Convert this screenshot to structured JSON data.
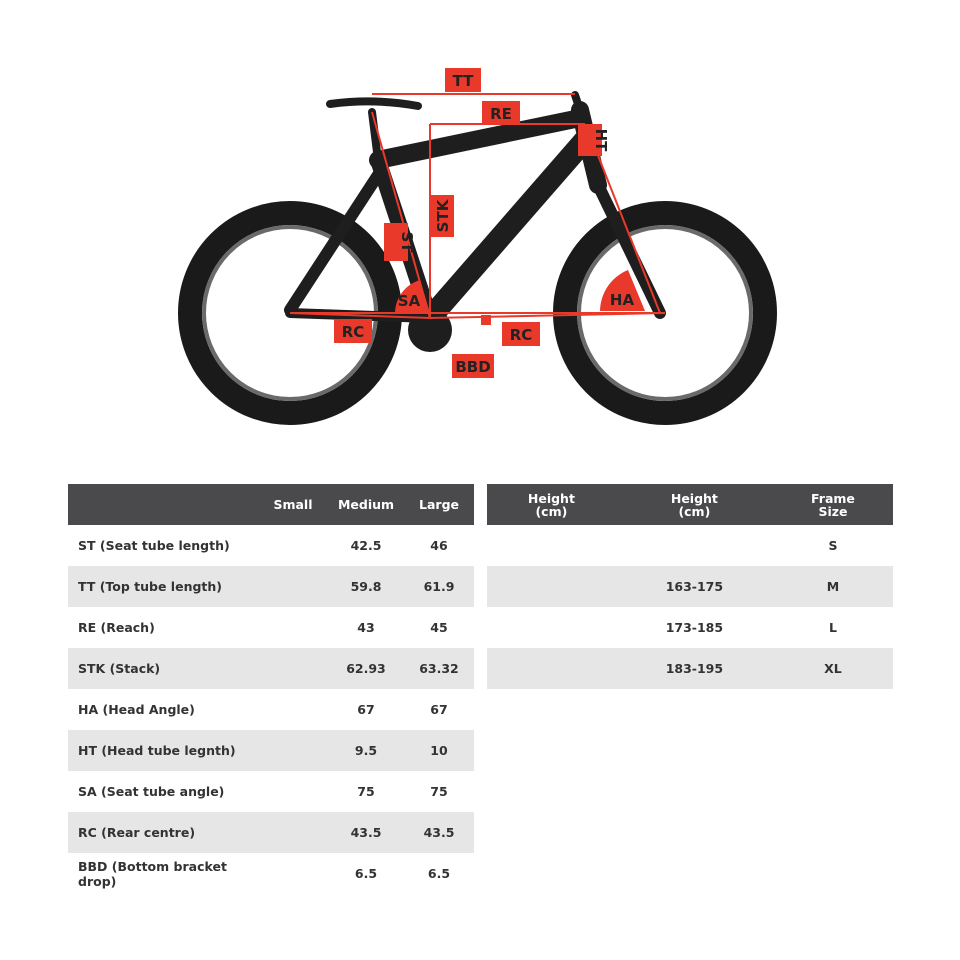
{
  "diagram": {
    "labels": {
      "tt": "TT",
      "re": "RE",
      "ht": "HT",
      "stk": "STK",
      "st": "ST",
      "sa": "SA",
      "ha": "HA",
      "rc_rear": "RC",
      "rc_front": "RC",
      "bbd": "BBD"
    },
    "colors": {
      "accent": "#e8392b",
      "frame": "#1e1e1e",
      "tyre": "#1a1a1a",
      "rim": "#6a6a6a"
    }
  },
  "geometry_table": {
    "headers": [
      "",
      "Small",
      "Medium",
      "Large"
    ],
    "rows": [
      {
        "name": "ST (Seat tube length)",
        "small": "",
        "medium": "42.5",
        "large": "46"
      },
      {
        "name": "TT (Top tube length)",
        "small": "",
        "medium": "59.8",
        "large": "61.9"
      },
      {
        "name": "RE (Reach)",
        "small": "",
        "medium": "43",
        "large": "45"
      },
      {
        "name": "STK (Stack)",
        "small": "",
        "medium": "62.93",
        "large": "63.32"
      },
      {
        "name": "HA (Head Angle)",
        "small": "",
        "medium": "67",
        "large": "67"
      },
      {
        "name": "HT (Head tube legnth)",
        "small": "",
        "medium": "9.5",
        "large": "10"
      },
      {
        "name": "SA (Seat tube angle)",
        "small": "",
        "medium": "75",
        "large": "75"
      },
      {
        "name": "RC (Rear centre)",
        "small": "",
        "medium": "43.5",
        "large": "43.5"
      },
      {
        "name": "BBD (Bottom bracket drop)",
        "small": "",
        "medium": "6.5",
        "large": "6.5"
      }
    ]
  },
  "size_table": {
    "headers": [
      {
        "l1": "Height",
        "l2": "(cm)"
      },
      {
        "l1": "Height",
        "l2": "(cm)"
      },
      {
        "l1": "Frame",
        "l2": "Size"
      }
    ],
    "rows": [
      {
        "h1": "",
        "h2": "",
        "size": "S"
      },
      {
        "h1": "",
        "h2": "163-175",
        "size": "M"
      },
      {
        "h1": "",
        "h2": "173-185",
        "size": "L"
      },
      {
        "h1": "",
        "h2": "183-195",
        "size": "XL"
      }
    ]
  }
}
